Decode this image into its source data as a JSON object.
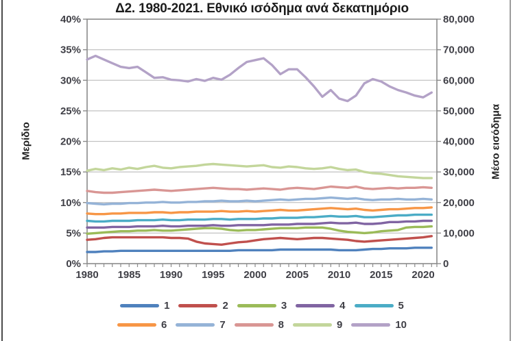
{
  "styles": {
    "background": "#ffffff",
    "grid_color": "#c2c2c2",
    "axis_color": "#8a8a8a",
    "tick_label_color": "#3f3f46",
    "title_color": "#1c1c1c",
    "left_border_color": "#4a4a4a",
    "right_border_color": "#9b9b9b"
  },
  "chart_data": {
    "type": "line",
    "title": "Δ2. 1980-2021. Εθνικό ισόδημα ανά δεκατημόριο",
    "grid": true,
    "legend_position": "bottom",
    "x": [
      1980,
      1981,
      1982,
      1983,
      1984,
      1985,
      1986,
      1987,
      1988,
      1989,
      1990,
      1991,
      1992,
      1993,
      1994,
      1995,
      1996,
      1997,
      1998,
      1999,
      2000,
      2001,
      2002,
      2003,
      2004,
      2005,
      2006,
      2007,
      2008,
      2009,
      2010,
      2011,
      2012,
      2013,
      2014,
      2015,
      2016,
      2017,
      2018,
      2019,
      2020,
      2021
    ],
    "xticks": [
      1980,
      1985,
      1990,
      1995,
      2000,
      2005,
      2010,
      2015,
      2020
    ],
    "y_left": {
      "label": "Μερίδιο",
      "lim": [
        0,
        40
      ],
      "tick_values": [
        0,
        5,
        10,
        15,
        20,
        25,
        30,
        35,
        40
      ],
      "ticks": [
        "0%",
        "5%",
        "10%",
        "15%",
        "20%",
        "25%",
        "30%",
        "35%",
        "40%"
      ]
    },
    "y_right": {
      "label": "Μέσο εισόδημα",
      "lim": [
        0,
        80000
      ],
      "tick_values": [
        0,
        10000,
        20000,
        30000,
        40000,
        50000,
        60000,
        70000,
        80000
      ],
      "ticks": [
        "0",
        "10,000",
        "20,000",
        "30,000",
        "40,000",
        "50,000",
        "60,000",
        "70,000",
        "80,000"
      ]
    },
    "series": [
      {
        "name": "1",
        "color": "#4F81BD",
        "axis": "left",
        "values": [
          1.9,
          1.9,
          2.0,
          2.0,
          2.1,
          2.1,
          2.1,
          2.1,
          2.1,
          2.1,
          2.1,
          2.1,
          2.1,
          2.1,
          2.1,
          2.1,
          2.1,
          2.1,
          2.2,
          2.2,
          2.2,
          2.2,
          2.2,
          2.3,
          2.3,
          2.3,
          2.3,
          2.3,
          2.3,
          2.3,
          2.2,
          2.2,
          2.2,
          2.3,
          2.4,
          2.4,
          2.5,
          2.5,
          2.5,
          2.6,
          2.6,
          2.6
        ]
      },
      {
        "name": "2",
        "color": "#C0504D",
        "axis": "left",
        "values": [
          3.9,
          4.0,
          4.2,
          4.3,
          4.3,
          4.3,
          4.3,
          4.3,
          4.3,
          4.3,
          4.2,
          4.2,
          4.1,
          3.6,
          3.3,
          3.2,
          3.1,
          3.3,
          3.5,
          3.6,
          3.8,
          4.0,
          4.1,
          4.2,
          4.1,
          4.0,
          4.1,
          4.2,
          4.2,
          4.1,
          4.0,
          3.9,
          3.7,
          3.6,
          3.7,
          3.8,
          3.9,
          4.0,
          4.1,
          4.2,
          4.3,
          4.5
        ]
      },
      {
        "name": "3",
        "color": "#9BBB59",
        "axis": "left",
        "values": [
          4.9,
          5.0,
          5.1,
          5.2,
          5.3,
          5.3,
          5.4,
          5.4,
          5.5,
          5.4,
          5.4,
          5.5,
          5.6,
          5.7,
          5.8,
          5.8,
          5.7,
          5.5,
          5.4,
          5.5,
          5.5,
          5.6,
          5.7,
          5.8,
          5.8,
          5.8,
          5.9,
          5.9,
          5.9,
          5.7,
          5.4,
          5.2,
          5.1,
          5.0,
          5.1,
          5.3,
          5.4,
          5.5,
          5.9,
          6.0,
          6.0,
          6.1
        ]
      },
      {
        "name": "4",
        "color": "#8064A2",
        "axis": "left",
        "values": [
          5.9,
          5.9,
          5.9,
          6.0,
          6.0,
          6.0,
          6.1,
          6.1,
          6.1,
          6.2,
          6.1,
          6.1,
          6.2,
          6.2,
          6.2,
          6.3,
          6.2,
          6.2,
          6.3,
          6.3,
          6.3,
          6.3,
          6.4,
          6.4,
          6.4,
          6.5,
          6.5,
          6.5,
          6.6,
          6.7,
          6.6,
          6.6,
          6.7,
          6.5,
          6.5,
          6.6,
          6.8,
          6.8,
          6.9,
          6.9,
          7.0,
          7.0
        ]
      },
      {
        "name": "5",
        "color": "#4BACC6",
        "axis": "left",
        "values": [
          7.0,
          6.9,
          6.9,
          7.0,
          7.0,
          7.0,
          7.1,
          7.1,
          7.1,
          7.2,
          7.1,
          7.1,
          7.2,
          7.2,
          7.2,
          7.3,
          7.3,
          7.2,
          7.3,
          7.3,
          7.3,
          7.4,
          7.4,
          7.5,
          7.5,
          7.5,
          7.6,
          7.6,
          7.7,
          7.8,
          7.7,
          7.7,
          7.8,
          7.6,
          7.6,
          7.7,
          7.8,
          7.9,
          7.9,
          8.0,
          8.0,
          8.0
        ]
      },
      {
        "name": "6",
        "color": "#F79646",
        "axis": "left",
        "values": [
          8.2,
          8.1,
          8.1,
          8.2,
          8.2,
          8.3,
          8.3,
          8.3,
          8.4,
          8.4,
          8.3,
          8.4,
          8.4,
          8.5,
          8.5,
          8.5,
          8.6,
          8.5,
          8.5,
          8.6,
          8.5,
          8.6,
          8.7,
          8.8,
          8.7,
          8.7,
          8.8,
          8.9,
          9.0,
          9.1,
          9.0,
          8.9,
          9.0,
          8.8,
          8.7,
          8.8,
          8.9,
          8.9,
          9.0,
          9.1,
          9.1,
          9.2
        ]
      },
      {
        "name": "7",
        "color": "#95B3D7",
        "axis": "left",
        "values": [
          9.9,
          9.8,
          9.7,
          9.8,
          9.8,
          9.9,
          9.9,
          10.0,
          10.0,
          10.1,
          10.0,
          10.0,
          10.1,
          10.1,
          10.2,
          10.2,
          10.3,
          10.2,
          10.2,
          10.3,
          10.2,
          10.3,
          10.4,
          10.5,
          10.4,
          10.5,
          10.6,
          10.6,
          10.7,
          10.8,
          10.7,
          10.6,
          10.7,
          10.5,
          10.4,
          10.5,
          10.5,
          10.6,
          10.5,
          10.5,
          10.6,
          10.5
        ]
      },
      {
        "name": "8",
        "color": "#D99694",
        "axis": "left",
        "values": [
          11.9,
          11.7,
          11.6,
          11.6,
          11.7,
          11.8,
          11.9,
          12.0,
          12.1,
          12.0,
          11.9,
          12.0,
          12.1,
          12.2,
          12.3,
          12.4,
          12.3,
          12.2,
          12.2,
          12.1,
          12.2,
          12.3,
          12.2,
          12.1,
          12.3,
          12.4,
          12.3,
          12.2,
          12.4,
          12.6,
          12.5,
          12.4,
          12.6,
          12.3,
          12.2,
          12.3,
          12.4,
          12.3,
          12.4,
          12.4,
          12.5,
          12.4
        ]
      },
      {
        "name": "9",
        "color": "#C3D69B",
        "axis": "left",
        "values": [
          15.2,
          15.5,
          15.3,
          15.6,
          15.4,
          15.7,
          15.5,
          15.8,
          16.0,
          15.7,
          15.6,
          15.8,
          15.9,
          16.0,
          16.2,
          16.3,
          16.2,
          16.1,
          16.0,
          15.9,
          16.0,
          16.1,
          15.8,
          15.7,
          15.9,
          15.8,
          15.6,
          15.5,
          15.6,
          15.8,
          15.5,
          15.3,
          15.4,
          15.0,
          14.8,
          14.7,
          14.5,
          14.3,
          14.2,
          14.1,
          14.0,
          14.0
        ]
      },
      {
        "name": "10",
        "color": "#B3A2C7",
        "axis": "left",
        "values": [
          33.4,
          34.0,
          33.4,
          32.8,
          32.2,
          32.0,
          32.2,
          31.3,
          30.4,
          30.5,
          30.1,
          30.0,
          29.8,
          30.2,
          29.9,
          30.4,
          30.1,
          30.9,
          32.0,
          33.0,
          33.3,
          33.6,
          32.5,
          31.0,
          31.8,
          31.8,
          30.5,
          29.0,
          27.3,
          28.4,
          27.0,
          26.6,
          27.5,
          29.5,
          30.2,
          29.8,
          29.0,
          28.4,
          28.0,
          27.5,
          27.2,
          28.0
        ]
      }
    ]
  }
}
